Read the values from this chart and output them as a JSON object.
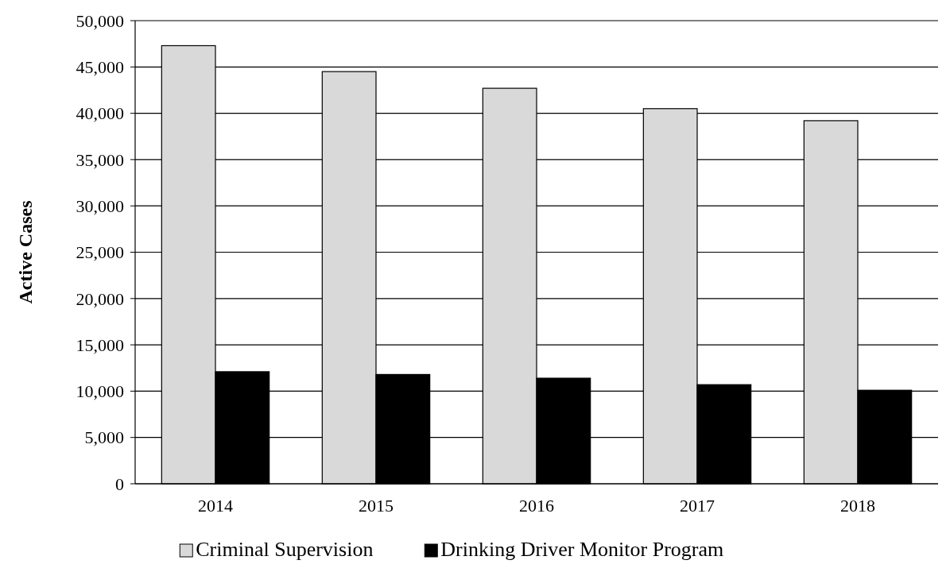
{
  "chart_data": {
    "type": "bar",
    "ylabel": "Active Cases",
    "categories": [
      "2014",
      "2015",
      "2016",
      "2017",
      "2018"
    ],
    "series": [
      {
        "name": "Criminal Supervision",
        "color": "#d9d9d9",
        "values": [
          47300,
          44500,
          42700,
          40500,
          39200
        ]
      },
      {
        "name": "Drinking Driver Monitor Program",
        "color": "#000000",
        "values": [
          12100,
          11800,
          11400,
          10700,
          10100
        ]
      }
    ],
    "ylim": [
      0,
      50000
    ],
    "yticks": [
      {
        "value": 0,
        "label": "0"
      },
      {
        "value": 5000,
        "label": "5,000"
      },
      {
        "value": 10000,
        "label": "10,000"
      },
      {
        "value": 15000,
        "label": "15,000"
      },
      {
        "value": 20000,
        "label": "20,000"
      },
      {
        "value": 25000,
        "label": "25,000"
      },
      {
        "value": 30000,
        "label": "30,000"
      },
      {
        "value": 35000,
        "label": "35,000"
      },
      {
        "value": 40000,
        "label": "40,000"
      },
      {
        "value": 45000,
        "label": "45,000"
      },
      {
        "value": 50000,
        "label": "50,000"
      }
    ],
    "grid": "y",
    "legend": "bottom"
  }
}
